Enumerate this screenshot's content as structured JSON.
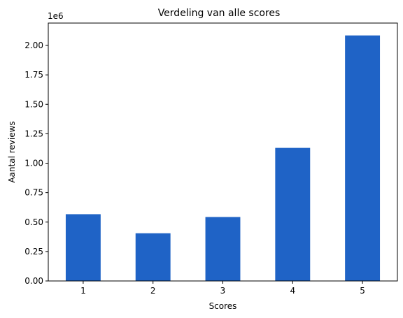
{
  "chart_data": {
    "type": "bar",
    "title": "Verdeling van alle scores",
    "xlabel": "Scores",
    "ylabel": "Aantal reviews",
    "y_multiplier_label": "1e6",
    "categories": [
      "1",
      "2",
      "3",
      "4",
      "5"
    ],
    "values": [
      567000,
      405000,
      543000,
      1130000,
      2085000
    ],
    "ylim": [
      0,
      2190000
    ],
    "yticks": [
      0,
      250000,
      500000,
      750000,
      1000000,
      1250000,
      1500000,
      1750000,
      2000000
    ],
    "ytick_labels": [
      "0.00",
      "0.25",
      "0.50",
      "0.75",
      "1.00",
      "1.25",
      "1.50",
      "1.75",
      "2.00"
    ],
    "bar_color": "#1f63c6",
    "grid": false,
    "legend": "none"
  }
}
